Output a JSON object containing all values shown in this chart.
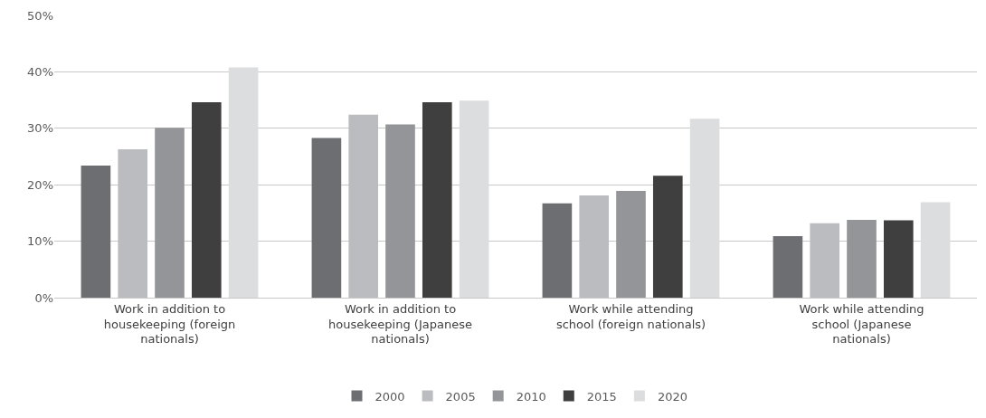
{
  "chart_data": {
    "type": "bar",
    "categories": [
      "Work in addition to housekeeping (foreign nationals)",
      "Work in addition to housekeeping (Japanese nationals)",
      "Work while attending school (foreign nationals)",
      "Work while attending school (Japanese nationals)"
    ],
    "series": [
      {
        "name": "2000",
        "color": "#6d6e71",
        "values": [
          23.4,
          28.3,
          16.7,
          10.9
        ]
      },
      {
        "name": "2005",
        "color": "#bbbcbf",
        "values": [
          26.3,
          32.4,
          18.1,
          13.2
        ]
      },
      {
        "name": "2010",
        "color": "#949598",
        "values": [
          30.1,
          30.7,
          18.9,
          13.8
        ]
      },
      {
        "name": "2015",
        "color": "#3f3f3f",
        "values": [
          34.6,
          34.6,
          21.6,
          13.7
        ]
      },
      {
        "name": "2020",
        "color": "#dcdddf",
        "values": [
          40.8,
          34.9,
          31.7,
          16.9
        ]
      }
    ],
    "ylim": [
      0,
      50
    ],
    "yticks": [
      {
        "value": 0,
        "label": "0%"
      },
      {
        "value": 10,
        "label": "10%"
      },
      {
        "value": 20,
        "label": "20%"
      },
      {
        "value": 30,
        "label": "30%"
      },
      {
        "value": 40,
        "label": "40%"
      },
      {
        "value": 50,
        "label": "50%"
      }
    ],
    "grid": "y",
    "legend": "bottom"
  }
}
